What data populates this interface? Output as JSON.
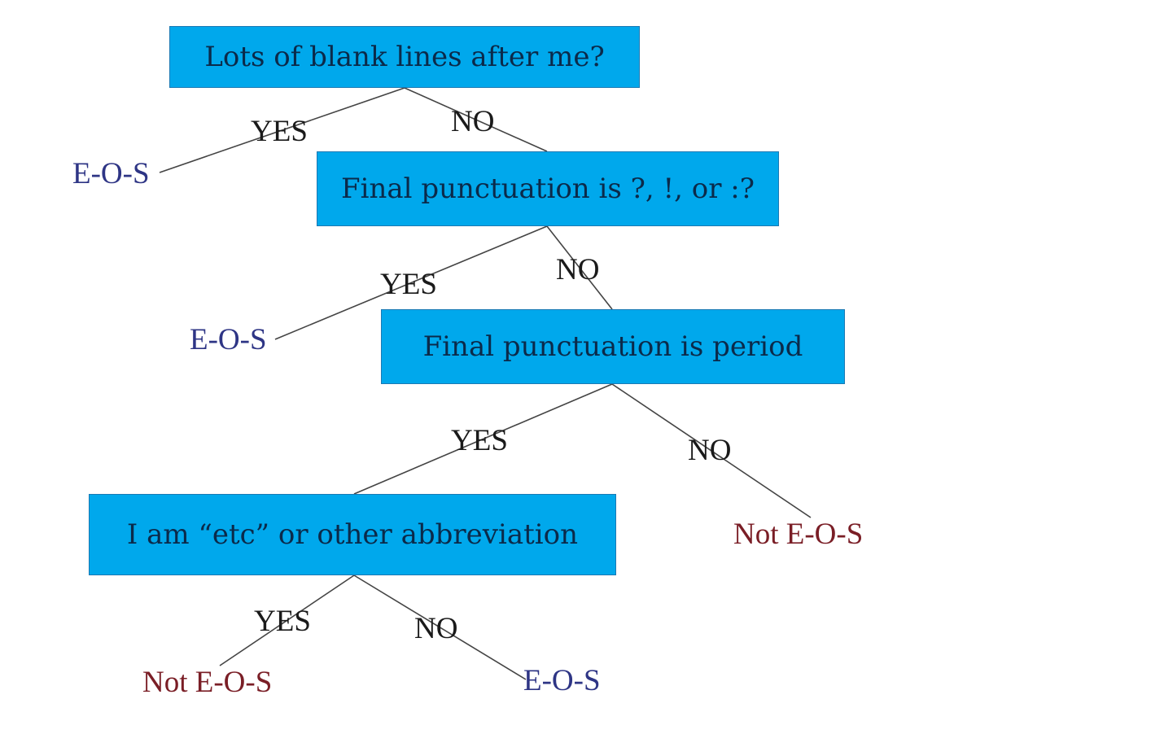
{
  "nodes": {
    "q1": "Lots of blank lines after me?",
    "q2": "Final punctuation is ?, !, or :?",
    "q3": "Final punctuation is period",
    "q4": "I am “etc” or other abbreviation"
  },
  "branches": {
    "q1_yes": "YES",
    "q1_no": "NO",
    "q2_yes": "YES",
    "q2_no": "NO",
    "q3_yes": "YES",
    "q3_no": "NO",
    "q4_yes": "YES",
    "q4_no": "NO"
  },
  "leaves": {
    "q1_yes": "E-O-S",
    "q2_yes": "E-O-S",
    "q3_no": "Not E-O-S",
    "q4_yes": "Not E-O-S",
    "q4_no": "E-O-S"
  },
  "colors": {
    "node_fill": "#00a8ec",
    "eos_text": "#2e3585",
    "not_eos_text": "#7a1e26",
    "edge_line": "#444444"
  }
}
